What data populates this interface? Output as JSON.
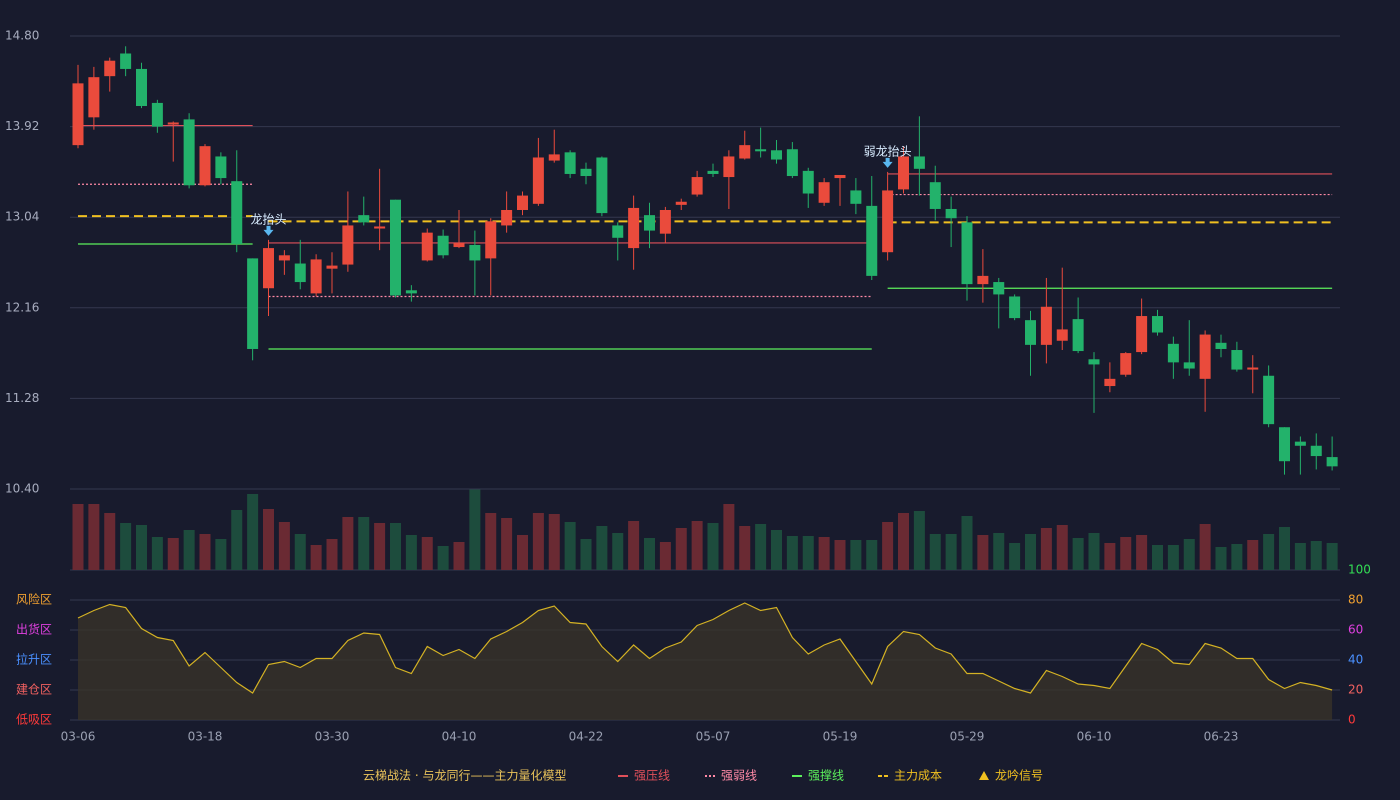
{
  "chart_data": [
    {
      "type": "candlestick",
      "categories": [
        "03-06",
        null,
        null,
        null,
        null,
        null,
        null,
        null,
        "03-18",
        null,
        null,
        null,
        null,
        null,
        null,
        null,
        "03-30",
        null,
        null,
        null,
        null,
        null,
        null,
        null,
        "04-10",
        null,
        null,
        null,
        null,
        null,
        null,
        null,
        "04-22",
        null,
        null,
        null,
        null,
        null,
        null,
        null,
        "05-07",
        null,
        null,
        null,
        null,
        null,
        null,
        null,
        "05-19",
        null,
        null,
        null,
        null,
        null,
        null,
        null,
        "05-29",
        null,
        null,
        null,
        null,
        null,
        null,
        null,
        "06-10",
        null,
        null,
        null,
        null,
        null,
        null,
        null,
        "06-23",
        null,
        null,
        null,
        null,
        null,
        null,
        null
      ],
      "open": [
        13.74,
        14.01,
        14.41,
        14.63,
        14.48,
        14.15,
        13.94,
        13.99,
        13.35,
        13.63,
        13.39,
        12.64,
        12.35,
        12.62,
        12.59,
        12.3,
        12.54,
        12.58,
        13.06,
        12.93,
        13.21,
        12.33,
        12.62,
        12.86,
        12.75,
        12.77,
        12.64,
        12.96,
        13.11,
        13.17,
        13.59,
        13.67,
        13.51,
        13.62,
        12.96,
        12.74,
        13.06,
        12.88,
        13.16,
        13.26,
        13.49,
        13.43,
        13.61,
        13.7,
        13.69,
        13.7,
        13.49,
        13.18,
        13.42,
        13.3,
        13.15,
        12.7,
        13.31,
        13.63,
        13.38,
        13.12,
        12.99,
        12.39,
        12.41,
        12.27,
        12.04,
        11.8,
        11.84,
        12.05,
        11.66,
        11.4,
        11.51,
        11.73,
        12.08,
        11.81,
        11.63,
        11.47,
        11.82,
        11.75,
        11.56,
        11.5,
        11.0,
        10.86,
        10.82,
        10.71
      ],
      "high": [
        14.52,
        14.5,
        14.59,
        14.7,
        14.54,
        14.18,
        13.97,
        14.05,
        13.75,
        13.67,
        13.69,
        12.64,
        12.82,
        12.72,
        12.82,
        12.68,
        12.7,
        13.29,
        13.24,
        13.51,
        13.21,
        12.38,
        12.93,
        12.92,
        13.11,
        12.91,
        13.03,
        13.29,
        13.29,
        13.81,
        13.89,
        13.69,
        13.57,
        13.63,
        12.99,
        13.25,
        13.18,
        13.14,
        13.22,
        13.49,
        13.56,
        13.69,
        13.88,
        13.91,
        13.79,
        13.77,
        13.52,
        13.42,
        13.45,
        13.42,
        13.44,
        13.48,
        13.73,
        14.02,
        13.54,
        13.24,
        13.05,
        12.73,
        12.45,
        12.29,
        12.13,
        12.45,
        12.55,
        12.26,
        11.73,
        11.63,
        11.73,
        12.25,
        12.14,
        11.88,
        12.04,
        11.94,
        11.9,
        11.83,
        11.7,
        11.6,
        11.0,
        10.91,
        10.94,
        10.91
      ],
      "low": [
        13.71,
        13.89,
        14.26,
        14.41,
        14.1,
        13.86,
        13.58,
        13.32,
        13.34,
        13.36,
        12.7,
        11.65,
        12.08,
        12.48,
        12.34,
        12.27,
        12.3,
        12.51,
        12.96,
        12.72,
        12.26,
        12.22,
        12.61,
        12.64,
        12.74,
        12.28,
        12.28,
        12.89,
        13.06,
        13.15,
        13.57,
        13.42,
        13.36,
        13.05,
        12.62,
        12.53,
        12.74,
        12.79,
        13.11,
        13.24,
        13.43,
        13.12,
        13.6,
        13.62,
        13.56,
        13.42,
        13.13,
        13.15,
        13.15,
        13.07,
        12.43,
        12.62,
        13.27,
        13.25,
        13.01,
        12.75,
        12.23,
        12.21,
        11.96,
        12.04,
        11.5,
        11.62,
        11.75,
        11.72,
        11.14,
        11.34,
        11.49,
        11.71,
        11.89,
        11.47,
        11.5,
        11.15,
        11.68,
        11.54,
        11.33,
        11.0,
        10.54,
        10.54,
        10.59,
        10.58
      ],
      "close": [
        14.34,
        14.4,
        14.56,
        14.48,
        14.12,
        13.92,
        13.96,
        13.35,
        13.73,
        13.42,
        12.78,
        11.76,
        12.74,
        12.67,
        12.41,
        12.63,
        12.57,
        12.96,
        12.99,
        12.95,
        12.28,
        12.3,
        12.89,
        12.67,
        12.79,
        12.62,
        13.0,
        13.11,
        13.25,
        13.62,
        13.65,
        13.46,
        13.44,
        13.08,
        12.84,
        13.13,
        12.91,
        13.11,
        13.19,
        13.43,
        13.46,
        13.63,
        13.74,
        13.68,
        13.6,
        13.44,
        13.27,
        13.38,
        13.45,
        13.17,
        12.47,
        13.3,
        13.63,
        13.51,
        13.12,
        13.03,
        12.39,
        12.47,
        12.29,
        12.06,
        11.8,
        12.17,
        11.95,
        11.74,
        11.61,
        11.47,
        11.72,
        12.08,
        11.92,
        11.63,
        11.57,
        11.9,
        11.76,
        11.56,
        11.58,
        11.03,
        10.67,
        10.82,
        10.72,
        10.62
      ],
      "up_color": "#ea4b3c",
      "down_color": "#23b26b",
      "ylim": [
        10.4,
        14.8
      ],
      "yticks": [
        {
          "value": 14.8,
          "label": "14.80"
        },
        {
          "value": 13.92,
          "label": "13.92"
        },
        {
          "value": 13.04,
          "label": "13.04"
        },
        {
          "value": 12.16,
          "label": "12.16"
        },
        {
          "value": 11.28,
          "label": "11.28"
        },
        {
          "value": 10.4,
          "label": "10.40"
        }
      ],
      "grid": true,
      "levels": [
        {
          "name": "强压线",
          "color": "#e0505a",
          "style": "solid",
          "segments": [
            {
              "start": 0,
              "end": 11,
              "value": 13.93
            },
            {
              "start": 12,
              "end": 50,
              "value": 12.79
            },
            {
              "start": 51,
              "end": 79,
              "value": 13.46
            }
          ]
        },
        {
          "name": "强弱线",
          "color": "#ff8aa6",
          "style": "dotted",
          "segments": [
            {
              "start": 0,
              "end": 11,
              "value": 13.36
            },
            {
              "start": 12,
              "end": 50,
              "value": 12.27
            },
            {
              "start": 51,
              "end": 79,
              "value": 13.26
            }
          ]
        },
        {
          "name": "强撑线",
          "color": "#5cf05c",
          "style": "solid",
          "segments": [
            {
              "start": 0,
              "end": 11,
              "value": 12.78
            },
            {
              "start": 12,
              "end": 50,
              "value": 11.76
            },
            {
              "start": 51,
              "end": 79,
              "value": 12.35
            }
          ]
        },
        {
          "name": "主力成本",
          "color": "#f0c020",
          "style": "dashed",
          "segments": [
            {
              "start": 0,
              "end": 11,
              "value": 13.05
            },
            {
              "start": 12,
              "end": 50,
              "value": 13.0
            },
            {
              "start": 51,
              "end": 79,
              "value": 12.99
            }
          ]
        }
      ],
      "signal_name": "龙吟信号",
      "signal_color": "#f0c020",
      "signal_marker_color": "#5ab8f0",
      "signals": [
        {
          "index": 12,
          "label": "龙抬头"
        },
        {
          "index": 51,
          "label": "弱龙抬头"
        }
      ],
      "legend_title": "云梯战法 · 与龙同行——主力量化模型",
      "legend_title_color": "#e8c25a"
    },
    {
      "type": "bar",
      "values": [
        66,
        66,
        57,
        47,
        45,
        33,
        32,
        40,
        36,
        31,
        60,
        76,
        61,
        48,
        36,
        25,
        31,
        53,
        53,
        47,
        47,
        35,
        33,
        24,
        28,
        81,
        57,
        52,
        35,
        57,
        56,
        48,
        31,
        44,
        37,
        49,
        32,
        28,
        42,
        49,
        47,
        66,
        44,
        46,
        40,
        34,
        34,
        33,
        30,
        30,
        30,
        48,
        57,
        59,
        36,
        36,
        54,
        35,
        37,
        27,
        36,
        42,
        45,
        32,
        37,
        27,
        33,
        35,
        25,
        25,
        31,
        46,
        23,
        26,
        30,
        36,
        43,
        27,
        29,
        27
      ],
      "up_color": "#6a2a33",
      "down_color": "#1d4c3d",
      "ylim": [
        0,
        81
      ]
    },
    {
      "type": "area",
      "values": [
        68,
        73,
        77,
        75,
        61,
        55,
        53,
        36,
        45,
        35,
        25,
        18,
        37,
        39,
        35,
        41,
        41,
        53,
        58,
        57,
        35,
        31,
        49,
        43,
        47,
        41,
        54,
        59,
        65,
        73,
        76,
        65,
        64,
        49,
        39,
        50,
        41,
        48,
        52,
        63,
        67,
        73,
        78,
        73,
        75,
        55,
        44,
        50,
        54,
        39,
        24,
        49,
        59,
        57,
        48,
        44,
        31,
        31,
        26,
        21,
        18,
        33,
        29,
        24,
        23,
        21,
        36,
        51,
        47,
        38,
        37,
        51,
        48,
        41,
        41,
        27,
        21,
        25,
        23,
        20
      ],
      "color": "#d4b224",
      "fill": "#3a3428",
      "ylim": [
        0,
        100
      ],
      "yticks": [
        0,
        20,
        40,
        60,
        80,
        100
      ],
      "ytick_colors": [
        "#ff3a3a",
        "#f06060",
        "#4a90ff",
        "#e040e0",
        "#f0a030",
        "#33dd55"
      ],
      "zones": [
        {
          "value": 80,
          "label": "风险区",
          "color": "#f0a030"
        },
        {
          "value": 60,
          "label": "出货区",
          "color": "#e040e0"
        },
        {
          "value": 40,
          "label": "拉升区",
          "color": "#4a90ff"
        },
        {
          "value": 20,
          "label": "建仓区",
          "color": "#f06060"
        },
        {
          "value": 0,
          "label": "低吸区",
          "color": "#ff3a3a"
        }
      ]
    }
  ]
}
